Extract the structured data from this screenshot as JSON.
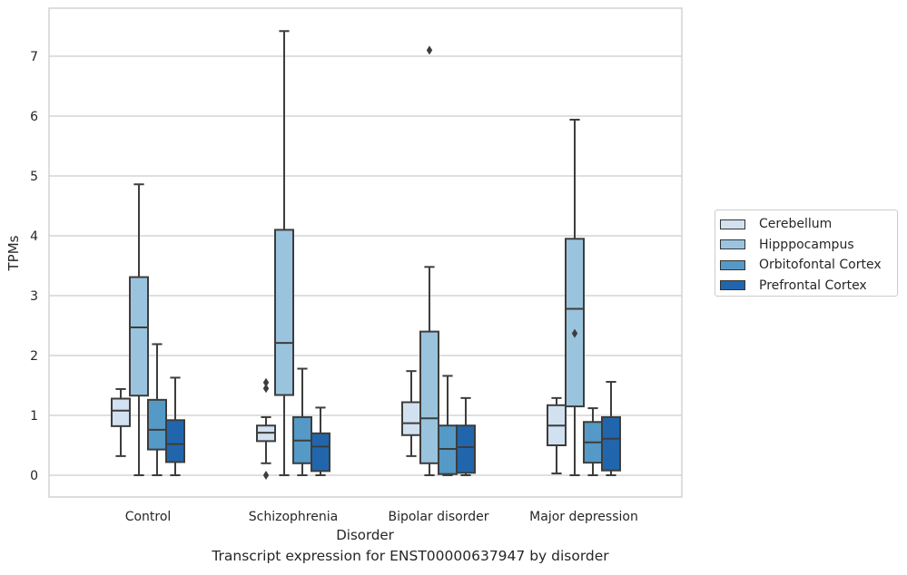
{
  "chart_data": {
    "type": "boxplot",
    "title": "",
    "caption": "Transcript expression for ENST00000637947 by disorder",
    "xlabel": "Disorder",
    "ylabel": "TPMs",
    "ylim": [
      -0.35,
      7.8
    ],
    "yticks": [
      0,
      1,
      2,
      3,
      4,
      5,
      6,
      7
    ],
    "grid": true,
    "legend_position": "right",
    "categories": [
      "Control",
      "Schizophrenia",
      "Bipolar disorder",
      "Major depression"
    ],
    "series": [
      {
        "name": "Cerebellum",
        "color": "#d1e1f0",
        "boxes": [
          {
            "whislo": 0.32,
            "q1": 0.82,
            "med": 1.08,
            "q3": 1.28,
            "whishi": 1.44,
            "fliers": []
          },
          {
            "whislo": 0.2,
            "q1": 0.57,
            "med": 0.71,
            "q3": 0.83,
            "whishi": 0.97,
            "fliers": [
              1.45,
              1.55,
              0.0
            ]
          },
          {
            "whislo": 0.32,
            "q1": 0.67,
            "med": 0.87,
            "q3": 1.22,
            "whishi": 1.74,
            "fliers": []
          },
          {
            "whislo": 0.03,
            "q1": 0.5,
            "med": 0.83,
            "q3": 1.17,
            "whishi": 1.29,
            "fliers": []
          }
        ]
      },
      {
        "name": "Hipppocampus",
        "color": "#9ac4de",
        "boxes": [
          {
            "whislo": 0.0,
            "q1": 1.33,
            "med": 2.47,
            "q3": 3.31,
            "whishi": 4.86,
            "fliers": []
          },
          {
            "whislo": 0.0,
            "q1": 1.34,
            "med": 2.21,
            "q3": 4.1,
            "whishi": 7.42,
            "fliers": []
          },
          {
            "whislo": 0.0,
            "q1": 0.2,
            "med": 0.95,
            "q3": 2.4,
            "whishi": 3.48,
            "fliers": [
              7.1
            ]
          },
          {
            "whislo": 0.0,
            "q1": 1.15,
            "med": 2.78,
            "q3": 3.95,
            "whishi": 5.94,
            "fliers": [
              2.37
            ]
          }
        ]
      },
      {
        "name": "Orbitofontal Cortex",
        "color": "#5599c6",
        "boxes": [
          {
            "whislo": 0.0,
            "q1": 0.43,
            "med": 0.76,
            "q3": 1.26,
            "whishi": 2.19,
            "fliers": []
          },
          {
            "whislo": 0.0,
            "q1": 0.2,
            "med": 0.58,
            "q3": 0.97,
            "whishi": 1.78,
            "fliers": []
          },
          {
            "whislo": 0.0,
            "q1": 0.02,
            "med": 0.44,
            "q3": 0.83,
            "whishi": 1.66,
            "fliers": []
          },
          {
            "whislo": 0.0,
            "q1": 0.21,
            "med": 0.55,
            "q3": 0.89,
            "whishi": 1.12,
            "fliers": []
          }
        ]
      },
      {
        "name": "Prefrontal Cortex",
        "color": "#2166ac",
        "boxes": [
          {
            "whislo": 0.0,
            "q1": 0.22,
            "med": 0.52,
            "q3": 0.92,
            "whishi": 1.63,
            "fliers": []
          },
          {
            "whislo": 0.0,
            "q1": 0.07,
            "med": 0.48,
            "q3": 0.7,
            "whishi": 1.13,
            "fliers": []
          },
          {
            "whislo": 0.0,
            "q1": 0.04,
            "med": 0.47,
            "q3": 0.83,
            "whishi": 1.29,
            "fliers": []
          },
          {
            "whislo": 0.0,
            "q1": 0.08,
            "med": 0.61,
            "q3": 0.97,
            "whishi": 1.56,
            "fliers": []
          }
        ]
      }
    ]
  }
}
